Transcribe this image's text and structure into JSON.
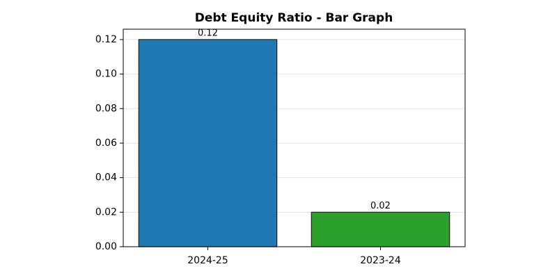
{
  "chart_data": {
    "type": "bar",
    "title": "Debt Equity Ratio - Bar Graph",
    "categories": [
      "2024-25",
      "2023-24"
    ],
    "values": [
      0.12,
      0.02
    ],
    "colors": [
      "#1f77b4",
      "#2ca02c"
    ],
    "ylim": [
      0,
      0.126
    ],
    "yticks": [
      {
        "value": 0,
        "label": "0.00"
      },
      0.02,
      0.04,
      0.06,
      0.08,
      {
        "value": 0.1,
        "label": "0.10"
      },
      0.12
    ],
    "grid": true
  }
}
